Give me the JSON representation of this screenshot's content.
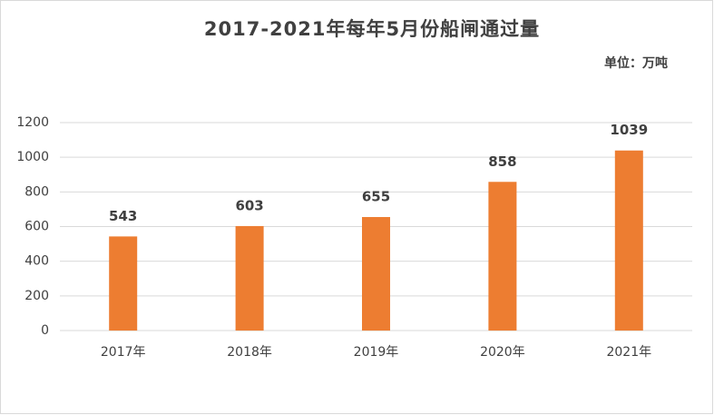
{
  "chart_data": {
    "type": "bar",
    "title": "2017-2021年每年5月份船闸通过量",
    "unit_label": "单位：万吨",
    "categories": [
      "2017年",
      "2018年",
      "2019年",
      "2020年",
      "2021年"
    ],
    "values": [
      543,
      603,
      655,
      858,
      1039
    ],
    "color": "#ed7d31",
    "ylim": [
      0,
      1200
    ],
    "yticks": [
      0,
      200,
      400,
      600,
      800,
      1000,
      1200
    ],
    "grid": true
  }
}
